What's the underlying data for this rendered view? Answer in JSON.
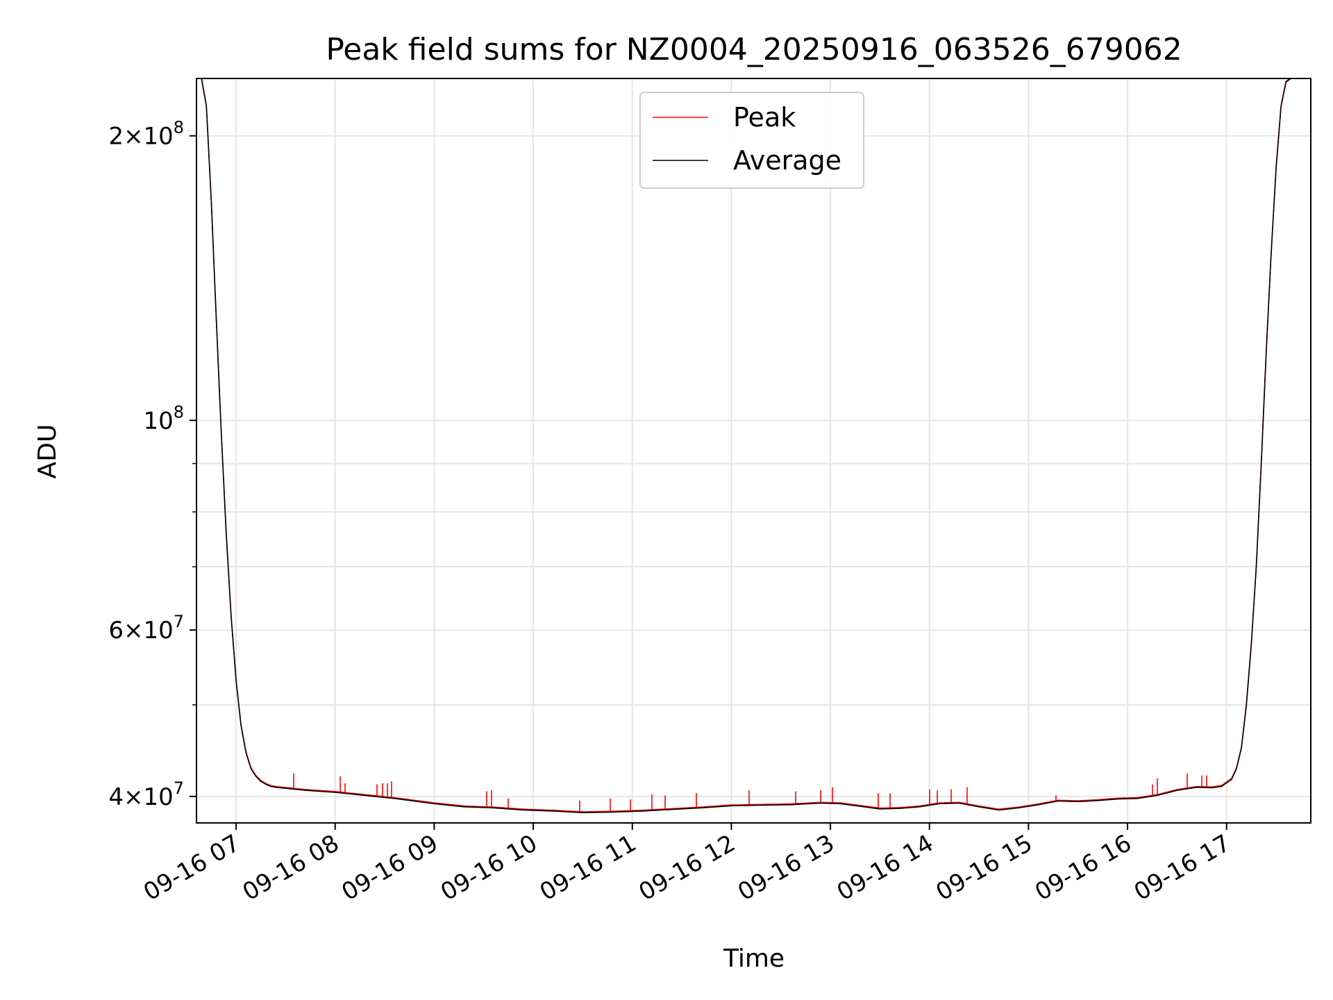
{
  "chart_data": {
    "type": "line",
    "title": "Peak field sums for NZ0004_20250916_063526_679062",
    "xlabel": "Time",
    "ylabel": "ADU",
    "yscale": "log",
    "grid": true,
    "legend_position": "top-center",
    "xlim": [
      6.6,
      17.85
    ],
    "ylim": [
      37500000,
      230000000
    ],
    "x_unit": "hour of 2025-09-16",
    "x_ticks": [
      {
        "x": 7,
        "label": "09-16 07"
      },
      {
        "x": 8,
        "label": "09-16 08"
      },
      {
        "x": 9,
        "label": "09-16 09"
      },
      {
        "x": 10,
        "label": "09-16 10"
      },
      {
        "x": 11,
        "label": "09-16 11"
      },
      {
        "x": 12,
        "label": "09-16 12"
      },
      {
        "x": 13,
        "label": "09-16 13"
      },
      {
        "x": 14,
        "label": "09-16 14"
      },
      {
        "x": 15,
        "label": "09-16 15"
      },
      {
        "x": 16,
        "label": "09-16 16"
      },
      {
        "x": 17,
        "label": "09-16 17"
      }
    ],
    "y_ticks": [
      {
        "value": 40000000,
        "base": "4×10",
        "exp": "7"
      },
      {
        "value": 60000000,
        "base": "6×10",
        "exp": "7"
      },
      {
        "value": 100000000,
        "base": "10",
        "exp": "8"
      },
      {
        "value": 200000000,
        "base": "2×10",
        "exp": "8"
      }
    ],
    "y_minor_ticks": [
      50000000,
      70000000,
      80000000,
      90000000
    ],
    "series": [
      {
        "name": "Peak",
        "color": "#ff0000",
        "spikes": [
          {
            "x": 7.58,
            "y": 42300000
          },
          {
            "x": 8.05,
            "y": 42000000
          },
          {
            "x": 8.1,
            "y": 41300000
          },
          {
            "x": 8.42,
            "y": 41200000
          },
          {
            "x": 8.48,
            "y": 41300000
          },
          {
            "x": 8.53,
            "y": 41300000
          },
          {
            "x": 8.57,
            "y": 41500000
          },
          {
            "x": 9.53,
            "y": 40500000
          },
          {
            "x": 9.58,
            "y": 40600000
          },
          {
            "x": 9.75,
            "y": 39800000
          },
          {
            "x": 10.47,
            "y": 39600000
          },
          {
            "x": 10.78,
            "y": 39800000
          },
          {
            "x": 10.98,
            "y": 39700000
          },
          {
            "x": 11.2,
            "y": 40200000
          },
          {
            "x": 11.33,
            "y": 40100000
          },
          {
            "x": 11.65,
            "y": 40300000
          },
          {
            "x": 12.18,
            "y": 40600000
          },
          {
            "x": 12.65,
            "y": 40500000
          },
          {
            "x": 12.9,
            "y": 40600000
          },
          {
            "x": 13.02,
            "y": 40900000
          },
          {
            "x": 13.48,
            "y": 40300000
          },
          {
            "x": 13.6,
            "y": 40300000
          },
          {
            "x": 14.0,
            "y": 40700000
          },
          {
            "x": 14.08,
            "y": 40600000
          },
          {
            "x": 14.22,
            "y": 40700000
          },
          {
            "x": 14.38,
            "y": 40900000
          },
          {
            "x": 15.28,
            "y": 40100000
          },
          {
            "x": 16.25,
            "y": 41200000
          },
          {
            "x": 16.3,
            "y": 41800000
          },
          {
            "x": 16.6,
            "y": 42300000
          },
          {
            "x": 16.75,
            "y": 42100000
          },
          {
            "x": 16.8,
            "y": 42100000
          }
        ]
      },
      {
        "name": "Average",
        "color": "#000000",
        "x": [
          6.62,
          6.65,
          6.7,
          6.75,
          6.8,
          6.85,
          6.9,
          6.95,
          7.0,
          7.05,
          7.1,
          7.15,
          7.2,
          7.25,
          7.3,
          7.35,
          7.4,
          7.5,
          7.7,
          8.0,
          8.3,
          8.6,
          9.0,
          9.3,
          9.6,
          9.9,
          10.2,
          10.5,
          10.8,
          11.1,
          11.4,
          11.7,
          12.0,
          12.3,
          12.6,
          12.9,
          13.1,
          13.3,
          13.5,
          13.7,
          13.9,
          14.1,
          14.3,
          14.5,
          14.7,
          14.9,
          15.1,
          15.3,
          15.5,
          15.7,
          15.9,
          16.1,
          16.3,
          16.5,
          16.7,
          16.85,
          16.95,
          17.05,
          17.1,
          17.15,
          17.2,
          17.25,
          17.3,
          17.35,
          17.4,
          17.45,
          17.5,
          17.55,
          17.6,
          17.65,
          17.7,
          17.8
        ],
        "y": [
          230000000,
          230000000,
          215000000,
          170000000,
          128000000,
          97000000,
          76000000,
          62000000,
          53000000,
          47500000,
          44500000,
          42800000,
          42000000,
          41500000,
          41200000,
          41000000,
          40900000,
          40800000,
          40600000,
          40400000,
          40100000,
          39800000,
          39300000,
          39000000,
          38900000,
          38700000,
          38600000,
          38450000,
          38500000,
          38600000,
          38750000,
          38900000,
          39100000,
          39150000,
          39200000,
          39350000,
          39300000,
          39050000,
          38800000,
          38850000,
          39000000,
          39300000,
          39350000,
          39000000,
          38700000,
          38900000,
          39200000,
          39550000,
          39500000,
          39600000,
          39750000,
          39800000,
          40100000,
          40600000,
          40900000,
          40850000,
          41000000,
          41700000,
          42800000,
          45000000,
          50000000,
          58000000,
          70000000,
          90000000,
          118000000,
          150000000,
          185000000,
          215000000,
          228000000,
          230000000,
          230000000,
          230000000
        ]
      }
    ]
  }
}
